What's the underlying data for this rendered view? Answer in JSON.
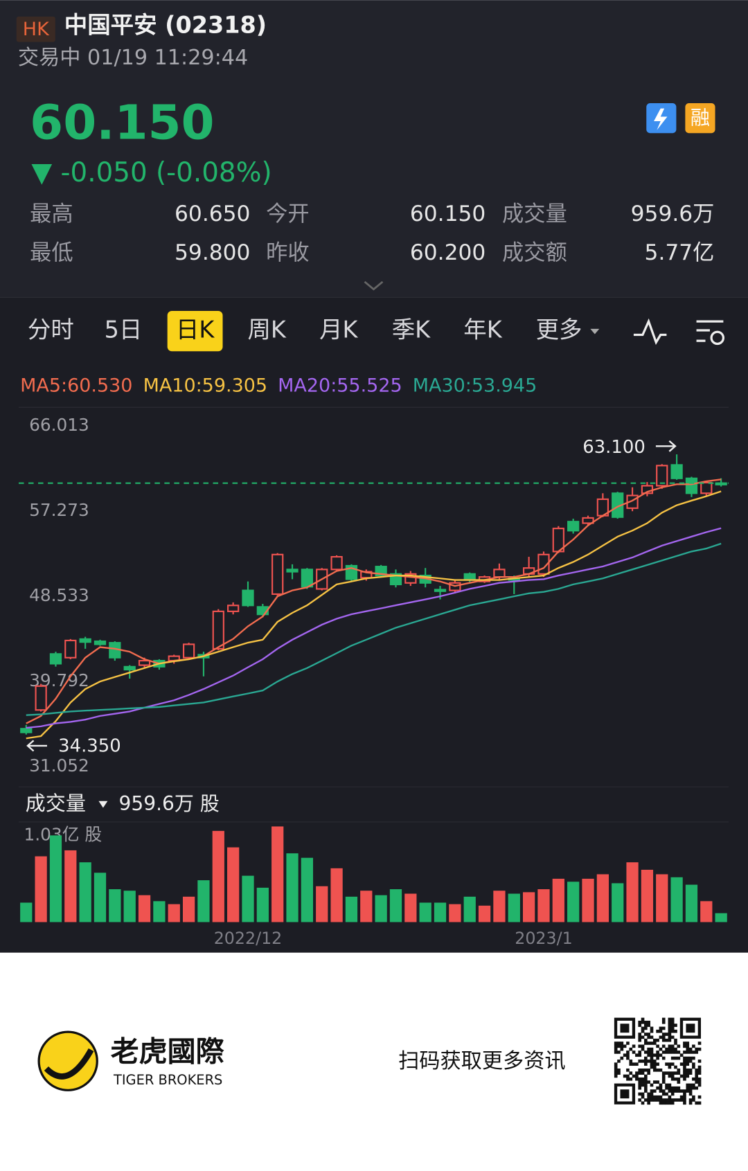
{
  "header": {
    "market": "HK",
    "name": "中国平安 (02318)",
    "status": "交易中 01/19 11:29:44",
    "price": "60.150",
    "change": "▼ -0.050 (-0.08%)",
    "badge": "融"
  },
  "stats": [
    [
      "最高",
      "60.650",
      "今开",
      "60.150",
      "成交量",
      "959.6万"
    ],
    [
      "最低",
      "59.800",
      "昨收",
      "60.200",
      "成交额",
      "5.77亿"
    ]
  ],
  "tabs": [
    "分时",
    "5日",
    "日K",
    "周K",
    "月K",
    "季K",
    "年K",
    "更多"
  ],
  "active_tab": 2,
  "chart_data": {
    "type": "candlestick",
    "up_color": "#ef5350",
    "down_color": "#22b46b",
    "categories": [
      null,
      null,
      null,
      null,
      null,
      null,
      null,
      null,
      null,
      null,
      null,
      null,
      null,
      null,
      null,
      "2022/12",
      null,
      null,
      null,
      null,
      null,
      null,
      null,
      null,
      null,
      null,
      null,
      null,
      null,
      null,
      null,
      null,
      null,
      null,
      null,
      "2023/1",
      null,
      null,
      null,
      null,
      null,
      null,
      null,
      null,
      null,
      null,
      null,
      null
    ],
    "open": [
      34.95,
      36.87,
      42.62,
      42.24,
      44.15,
      43.92,
      43.77,
      41.31,
      41.47,
      41.93,
      41.93,
      42.24,
      42.54,
      43.15,
      46.99,
      49.14,
      47.45,
      48.76,
      51.29,
      51.29,
      49.29,
      51.29,
      51.67,
      50.44,
      51.59,
      50.83,
      49.91,
      50.67,
      49.22,
      49.14,
      50.83,
      50.06,
      50.52,
      50.37,
      50.83,
      50.83,
      53.13,
      56.2,
      56.04,
      56.81,
      59.11,
      57.58,
      59.11,
      59.88,
      62.02,
      60.64,
      59.11,
      60.15
    ],
    "high": [
      35.33,
      39.55,
      42.85,
      44.15,
      44.38,
      44.08,
      43.92,
      41.47,
      42.24,
      42.08,
      42.54,
      43.77,
      42.85,
      47.22,
      47.91,
      50.06,
      47.76,
      52.97,
      51.82,
      51.44,
      51.44,
      52.74,
      51.82,
      51.29,
      51.75,
      51.29,
      51.13,
      51.44,
      49.6,
      50.21,
      50.98,
      50.67,
      51.9,
      50.67,
      52.59,
      53.13,
      55.74,
      56.5,
      56.81,
      59.11,
      59.26,
      59.72,
      60.26,
      62.1,
      63.1,
      60.8,
      60.26,
      60.65
    ],
    "low": [
      34.35,
      36.71,
      41.32,
      42.08,
      43.15,
      43.46,
      41.93,
      40.09,
      41.16,
      41.01,
      41.62,
      42.08,
      40.32,
      43.0,
      46.68,
      47.45,
      46.38,
      48.53,
      50.29,
      49.29,
      49.14,
      51.06,
      50.06,
      50.14,
      50.52,
      49.45,
      49.6,
      49.45,
      48.22,
      48.83,
      49.91,
      49.91,
      50.21,
      48.76,
      50.52,
      50.52,
      52.97,
      54.97,
      55.74,
      56.66,
      56.5,
      57.27,
      58.8,
      59.57,
      60.49,
      58.72,
      58.8,
      59.8
    ],
    "close": [
      34.57,
      39.32,
      41.62,
      44.0,
      43.84,
      43.61,
      42.24,
      41.01,
      41.93,
      41.31,
      42.39,
      43.61,
      42.24,
      46.99,
      47.6,
      47.6,
      46.68,
      52.82,
      51.06,
      49.52,
      51.29,
      52.59,
      50.29,
      51.06,
      50.67,
      49.75,
      50.83,
      49.91,
      49.06,
      49.91,
      50.21,
      50.52,
      51.29,
      50.21,
      51.44,
      52.82,
      55.5,
      55.27,
      56.58,
      58.5,
      56.66,
      58.88,
      59.88,
      61.95,
      60.64,
      59.11,
      60.2,
      60.15
    ],
    "volume": [
      2093,
      7084,
      9338,
      7728,
      6440,
      5313,
      3542,
      3381,
      2898,
      2254,
      1932,
      2737,
      4508,
      9821,
      8050,
      4991,
      3703,
      10300,
      7406,
      6923,
      3864,
      5796,
      2737,
      3381,
      2898,
      3542,
      3059,
      2093,
      2093,
      1932,
      2737,
      1771,
      3381,
      3059,
      3220,
      3542,
      4669,
      4347,
      4669,
      5152,
      4186,
      6440,
      5635,
      5152,
      4830,
      4025,
      2254,
      959.6
    ],
    "series": [
      {
        "name": "MA5:60.530",
        "color": "#f26c4f",
        "values": [
          35.49,
          36.26,
          38.03,
          40.33,
          42.24,
          43.32,
          43.16,
          42.85,
          42.08,
          41.63,
          41.93,
          42.08,
          42.39,
          43.32,
          44.16,
          45.46,
          46.46,
          48.53,
          49.14,
          49.45,
          50.29,
          51.13,
          51.44,
          50.98,
          50.83,
          50.67,
          50.52,
          50.37,
          50.06,
          49.6,
          49.91,
          50.21,
          50.52,
          50.52,
          50.83,
          51.44,
          53.13,
          54.36,
          55.81,
          56.81,
          57.73,
          58.35,
          59.26,
          59.72,
          60.03,
          60.03,
          60.34,
          60.53
        ]
      },
      {
        "name": "MA10:59.305",
        "color": "#f6c244",
        "values": [
          33.96,
          34.19,
          35.73,
          37.64,
          39.02,
          39.79,
          40.25,
          40.71,
          41.17,
          41.63,
          41.86,
          42.08,
          42.39,
          42.85,
          43.32,
          43.78,
          44.08,
          45.92,
          46.84,
          47.61,
          48.68,
          49.76,
          50.06,
          50.37,
          50.52,
          50.67,
          50.67,
          50.52,
          50.37,
          50.21,
          50.21,
          50.21,
          50.21,
          50.37,
          50.52,
          50.67,
          51.44,
          52.06,
          52.82,
          53.74,
          54.66,
          55.28,
          56.04,
          57.12,
          57.88,
          58.35,
          58.8,
          59.305
        ]
      },
      {
        "name": "MA20:55.525",
        "color": "#a466f0",
        "values": [
          35.04,
          35.19,
          35.5,
          35.65,
          35.88,
          36.26,
          36.49,
          36.72,
          37.11,
          37.49,
          37.87,
          38.41,
          39.02,
          39.71,
          40.4,
          41.25,
          42.08,
          43.16,
          44.08,
          44.85,
          45.62,
          46.23,
          46.69,
          47.0,
          47.3,
          47.61,
          47.92,
          48.22,
          48.53,
          48.91,
          49.3,
          49.6,
          49.91,
          50.06,
          50.21,
          50.29,
          50.67,
          50.98,
          51.29,
          51.6,
          52.06,
          52.52,
          53.13,
          53.74,
          54.2,
          54.66,
          55.12,
          55.525
        ]
      },
      {
        "name": "MA30:53.945",
        "color": "#2aa893",
        "values": [
          36.34,
          36.42,
          36.57,
          36.72,
          36.8,
          36.88,
          36.95,
          37.03,
          37.11,
          37.18,
          37.34,
          37.49,
          37.64,
          37.95,
          38.26,
          38.56,
          38.87,
          39.79,
          40.56,
          41.17,
          41.93,
          42.7,
          43.47,
          44.08,
          44.7,
          45.31,
          45.77,
          46.23,
          46.69,
          47.15,
          47.61,
          47.92,
          48.22,
          48.53,
          48.84,
          48.99,
          49.3,
          49.76,
          50.06,
          50.37,
          50.83,
          51.29,
          51.75,
          52.21,
          52.67,
          53.13,
          53.44,
          53.945
        ]
      }
    ],
    "ylim": [
      31.052,
      66.013
    ],
    "yticks": [
      66.013,
      57.273,
      48.533,
      39.792,
      31.052
    ],
    "y2lim": [
      0,
      10300
    ],
    "y2ticks": [
      {
        "value": 10300,
        "label": "1.03亿 股"
      }
    ],
    "annotations": [
      {
        "value": 63.1,
        "label": "63.100"
      },
      {
        "value": 34.35,
        "label": "34.350"
      }
    ],
    "volume_title": "成交量",
    "volume_label": "959.6万 股"
  },
  "footer": {
    "brand": "老虎國際",
    "brand_en": "TIGER BROKERS",
    "slogan": "扫码获取更多资讯"
  }
}
